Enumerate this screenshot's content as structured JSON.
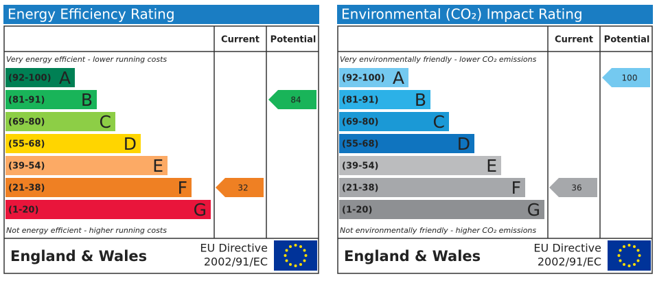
{
  "panels": [
    {
      "title": "Energy Efficiency Rating",
      "headers": [
        "Current",
        "Potential"
      ],
      "top_note": "Very energy efficient - lower running costs",
      "bottom_note": "Not energy efficient - higher running costs",
      "bands": [
        {
          "range": "(92-100)",
          "letter": "A",
          "color": "#008054"
        },
        {
          "range": "(81-91)",
          "letter": "B",
          "color": "#19b459"
        },
        {
          "range": "(69-80)",
          "letter": "C",
          "color": "#8dce46"
        },
        {
          "range": "(55-68)",
          "letter": "D",
          "color": "#ffd500"
        },
        {
          "range": "(39-54)",
          "letter": "E",
          "color": "#fcaa65"
        },
        {
          "range": "(21-38)",
          "letter": "F",
          "color": "#ef8023"
        },
        {
          "range": "(1-20)",
          "letter": "G",
          "color": "#e9153b"
        }
      ],
      "current": 32,
      "potential": 84,
      "footer": {
        "region": "England & Wales",
        "directive": [
          "EU Directive",
          "2002/91/EC"
        ]
      }
    },
    {
      "title": "Environmental (CO₂) Impact Rating",
      "headers": [
        "Current",
        "Potential"
      ],
      "top_note": "Very environmentally friendly - lower CO₂ emissions",
      "bottom_note": "Not environmentally friendly - higher CO₂ emissions",
      "bands": [
        {
          "range": "(92-100)",
          "letter": "A",
          "color": "#74c9f0"
        },
        {
          "range": "(81-91)",
          "letter": "B",
          "color": "#2cb1e7"
        },
        {
          "range": "(69-80)",
          "letter": "C",
          "color": "#1b99d6"
        },
        {
          "range": "(55-68)",
          "letter": "D",
          "color": "#0f74bf"
        },
        {
          "range": "(39-54)",
          "letter": "E",
          "color": "#bbbcbe"
        },
        {
          "range": "(21-38)",
          "letter": "F",
          "color": "#a6a8ab"
        },
        {
          "range": "(1-20)",
          "letter": "G",
          "color": "#8e9093"
        }
      ],
      "current": 36,
      "potential": 100,
      "footer": {
        "region": "England & Wales",
        "directive": [
          "EU Directive",
          "2002/91/EC"
        ]
      }
    }
  ]
}
